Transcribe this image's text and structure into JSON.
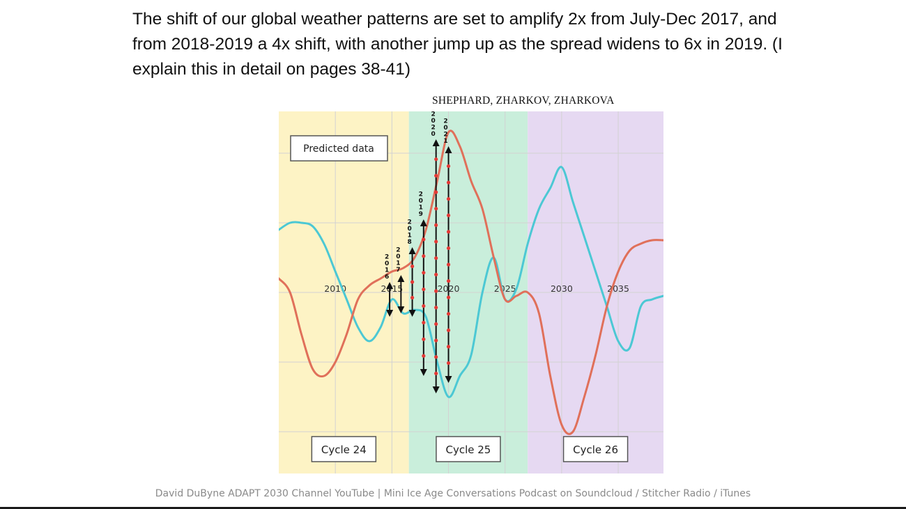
{
  "slide": {
    "headline": "The shift of our global weather patterns are set to amplify 2x from July-Dec 2017, and from 2018-2019 a 4x shift, with another jump up as the spread widens to 6x in 2019. (I explain this in detail on pages 38-41)",
    "footer": "David DuByne ADAPT 2030 Channel YouTube | Mini Ice Age Conversations Podcast on Soundcloud / Stitcher Radio / iTunes"
  },
  "chart_data": {
    "type": "line",
    "authors": "SHEPHARD, ZHARKOV, ZHARKOVA",
    "annotation": "Predicted data",
    "xlim": [
      2005,
      2039
    ],
    "ylim": [
      -2.6,
      2.6
    ],
    "x_ticks": [
      2010,
      2015,
      2020,
      2025,
      2030,
      2035
    ],
    "x_tick_labels": [
      "2010",
      "2015",
      "2020",
      "2025",
      "2030",
      "2035"
    ],
    "grid": true,
    "legend": "none",
    "cycle_regions": [
      {
        "label": "Cycle 24",
        "start": 2005,
        "end": 2016.5,
        "color": "#fdf3c5"
      },
      {
        "label": "Cycle 25",
        "start": 2016.5,
        "end": 2027,
        "color": "#c9eedb"
      },
      {
        "label": "Cycle 26",
        "start": 2027,
        "end": 2039,
        "color": "#e6d9f2"
      }
    ],
    "series": [
      {
        "color": "#4cc8d4",
        "x": [
          2005,
          2006,
          2007,
          2008,
          2009,
          2010,
          2011,
          2012,
          2013,
          2014,
          2015,
          2016,
          2017,
          2018,
          2019,
          2020,
          2021,
          2022,
          2023,
          2024,
          2025,
          2026,
          2027,
          2028,
          2029,
          2030,
          2031,
          2032,
          2033,
          2034,
          2035,
          2036,
          2037,
          2038,
          2039
        ],
        "y": [
          0.9,
          1.0,
          1.0,
          0.95,
          0.7,
          0.3,
          -0.1,
          -0.5,
          -0.7,
          -0.5,
          -0.1,
          -0.3,
          -0.25,
          -0.35,
          -1.0,
          -1.5,
          -1.2,
          -0.9,
          0.0,
          0.5,
          -0.1,
          0.05,
          0.7,
          1.2,
          1.5,
          1.8,
          1.3,
          0.8,
          0.3,
          -0.2,
          -0.7,
          -0.8,
          -0.2,
          -0.1,
          -0.05
        ]
      },
      {
        "color": "#e0705a",
        "x": [
          2005,
          2006,
          2007,
          2008,
          2009,
          2010,
          2011,
          2012,
          2013,
          2014,
          2015,
          2016,
          2017,
          2018,
          2019,
          2020,
          2021,
          2022,
          2023,
          2024,
          2025,
          2026,
          2027,
          2028,
          2029,
          2030,
          2031,
          2032,
          2033,
          2034,
          2035,
          2036,
          2037,
          2038,
          2039
        ],
        "y": [
          0.2,
          0.0,
          -0.6,
          -1.1,
          -1.2,
          -1.0,
          -0.6,
          -0.1,
          0.1,
          0.2,
          0.3,
          0.35,
          0.5,
          0.9,
          1.6,
          2.3,
          2.1,
          1.6,
          1.2,
          0.5,
          -0.1,
          -0.05,
          0.0,
          -0.3,
          -1.2,
          -1.9,
          -2.0,
          -1.5,
          -0.9,
          -0.2,
          0.3,
          0.6,
          0.7,
          0.75,
          0.75
        ]
      }
    ],
    "spread_arrows": [
      {
        "label": "2016",
        "x": 2014.8,
        "low": -0.3,
        "high": 0.1
      },
      {
        "label": "2017",
        "x": 2015.8,
        "low": -0.25,
        "high": 0.2
      },
      {
        "label": "2018",
        "x": 2016.8,
        "low": -0.3,
        "high": 0.6
      },
      {
        "label": "2019",
        "x": 2017.8,
        "low": -1.15,
        "high": 1.0
      },
      {
        "label": "2020",
        "x": 2018.9,
        "low": -1.4,
        "high": 2.15
      },
      {
        "label": "2021",
        "x": 2020.0,
        "low": -1.25,
        "high": 2.05
      }
    ]
  }
}
